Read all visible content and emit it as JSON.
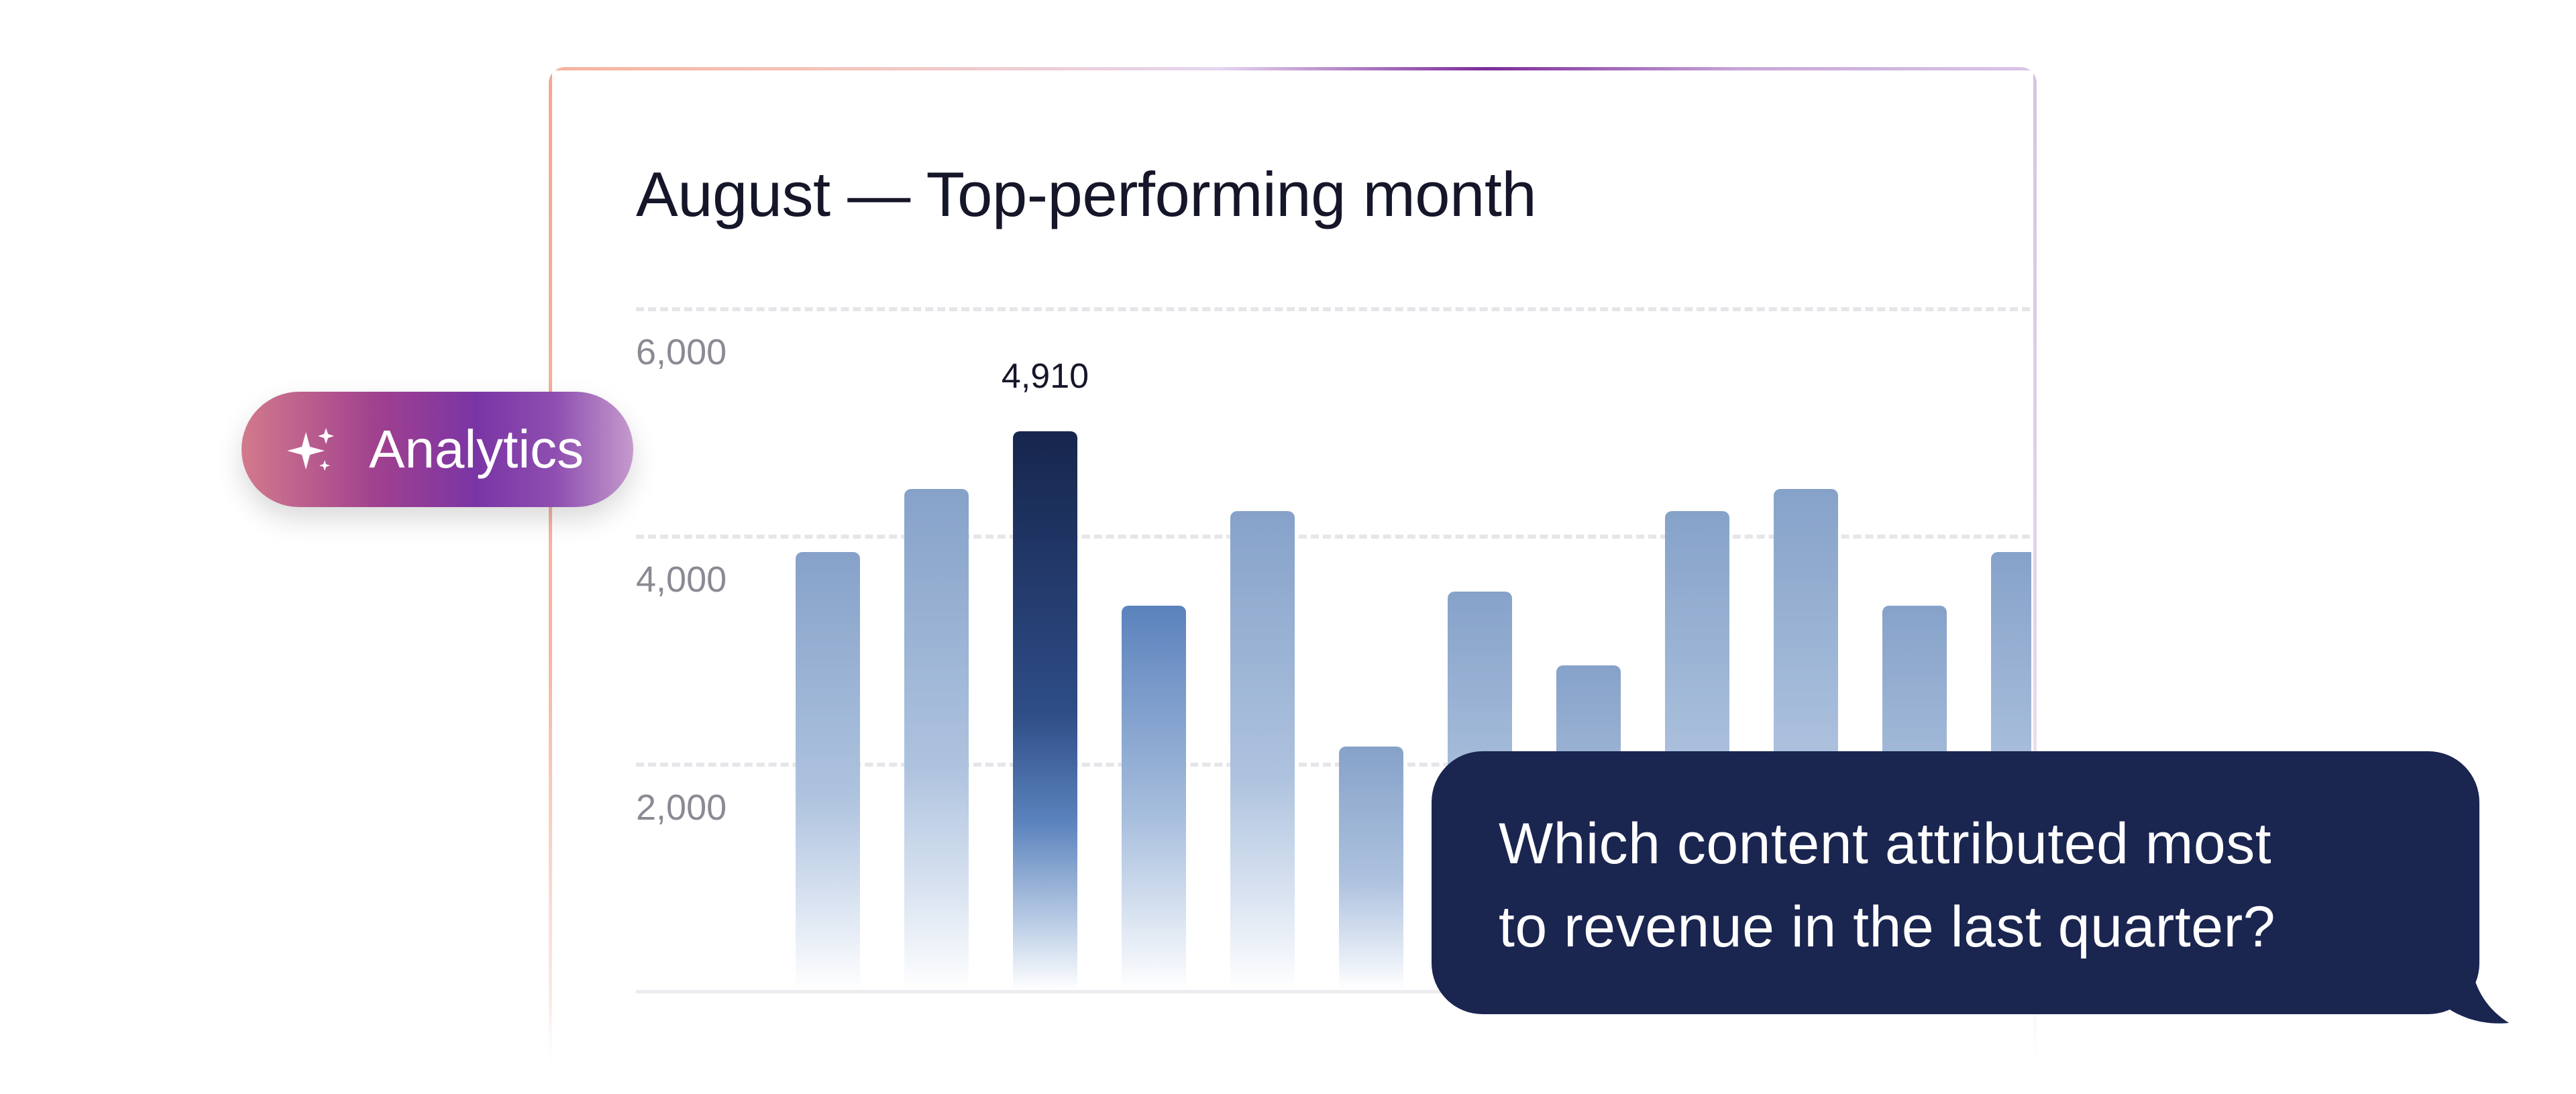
{
  "card": {
    "title": "August — Top-performing month"
  },
  "chart_data": {
    "type": "bar",
    "title": "August — Top-performing month",
    "xlabel": "",
    "ylabel": "",
    "ylim": [
      0,
      6000
    ],
    "y_ticks": [
      "6,000",
      "4,000",
      "2,000"
    ],
    "grid": true,
    "values": [
      3850,
      4400,
      4910,
      3380,
      4210,
      2140,
      3500,
      2850,
      4210,
      4400,
      3380,
      3850
    ],
    "highlight_index": 2,
    "data_labels": [
      {
        "index": 2,
        "text": "4,910"
      }
    ],
    "colors": {
      "default_bar": "#86a2c9",
      "highlight_bar": "#16264d"
    }
  },
  "badge": {
    "label": "Analytics",
    "icon": "sparkles-icon"
  },
  "chat": {
    "lines": [
      "Which content attributed most",
      "to revenue in the last quarter?"
    ],
    "background": "#1a2550"
  }
}
